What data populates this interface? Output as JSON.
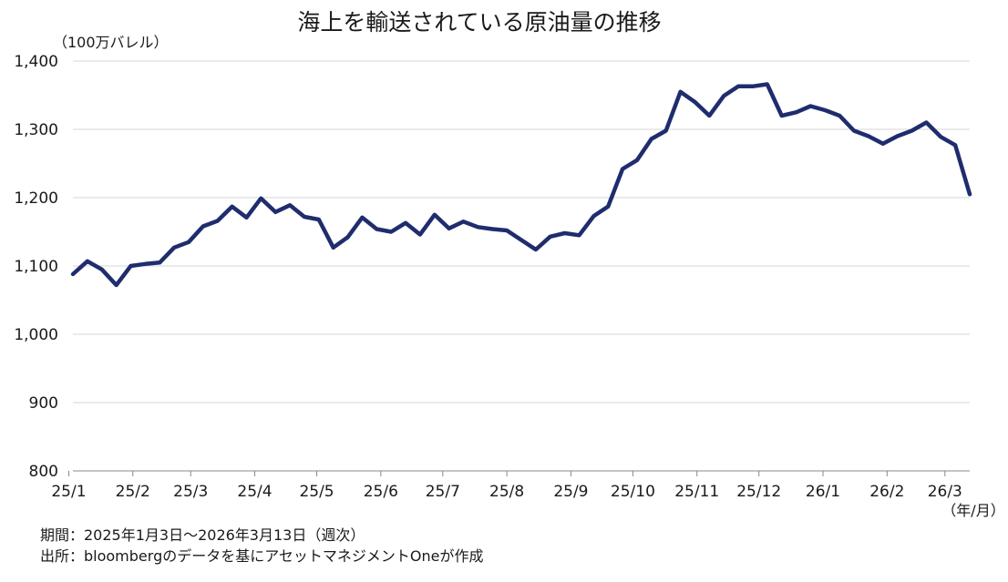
{
  "chart_data": {
    "type": "line",
    "title": "海上を輸送されている原油量の推移",
    "ylabel": "（100万バレル）",
    "xlabel": "（年/月）",
    "ylim": [
      800,
      1400
    ],
    "y_ticks": [
      "800",
      "900",
      "1,000",
      "1,100",
      "1,200",
      "1,300",
      "1,400"
    ],
    "y_tick_values": [
      800,
      900,
      1000,
      1100,
      1200,
      1300,
      1400
    ],
    "x_tick_labels": [
      "25/1",
      "25/2",
      "25/3",
      "25/4",
      "25/5",
      "25/6",
      "25/7",
      "25/8",
      "25/9",
      "25/10",
      "25/11",
      "25/12",
      "26/1",
      "26/2",
      "26/3"
    ],
    "x_tick_dates": [
      "2025-01-01",
      "2025-02-01",
      "2025-03-01",
      "2025-04-01",
      "2025-05-01",
      "2025-06-01",
      "2025-07-01",
      "2025-08-01",
      "2025-09-01",
      "2025-10-01",
      "2025-11-01",
      "2025-12-01",
      "2026-01-01",
      "2026-02-01",
      "2026-03-01"
    ],
    "grid": true,
    "line_color": "#1f2d6e",
    "series": [
      {
        "x": [
          "2025-01-03",
          "2025-01-10",
          "2025-01-17",
          "2025-01-24",
          "2025-01-31",
          "2025-02-07",
          "2025-02-14",
          "2025-02-21",
          "2025-02-28",
          "2025-03-07",
          "2025-03-14",
          "2025-03-21",
          "2025-03-28",
          "2025-04-04",
          "2025-04-11",
          "2025-04-18",
          "2025-04-25",
          "2025-05-02",
          "2025-05-09",
          "2025-05-16",
          "2025-05-23",
          "2025-05-30",
          "2025-06-06",
          "2025-06-13",
          "2025-06-20",
          "2025-06-27",
          "2025-07-04",
          "2025-07-11",
          "2025-07-18",
          "2025-07-25",
          "2025-08-01",
          "2025-08-08",
          "2025-08-15",
          "2025-08-22",
          "2025-08-29",
          "2025-09-05",
          "2025-09-12",
          "2025-09-19",
          "2025-09-26",
          "2025-10-03",
          "2025-10-10",
          "2025-10-17",
          "2025-10-24",
          "2025-10-31",
          "2025-11-07",
          "2025-11-14",
          "2025-11-21",
          "2025-11-28",
          "2025-12-05",
          "2025-12-12",
          "2025-12-19",
          "2025-12-26",
          "2026-01-02",
          "2026-01-09",
          "2026-01-16",
          "2026-01-23",
          "2026-01-30",
          "2026-02-06",
          "2026-02-13",
          "2026-02-20",
          "2026-02-27",
          "2026-03-06",
          "2026-03-13"
        ],
        "values": [
          1088,
          1107,
          1095,
          1072,
          1100,
          1103,
          1105,
          1127,
          1135,
          1158,
          1166,
          1187,
          1171,
          1199,
          1179,
          1189,
          1172,
          1168,
          1127,
          1142,
          1171,
          1154,
          1150,
          1163,
          1146,
          1175,
          1155,
          1165,
          1157,
          1154,
          1152,
          1138,
          1124,
          1143,
          1148,
          1145,
          1173,
          1187,
          1242,
          1255,
          1286,
          1298,
          1355,
          1340,
          1320,
          1349,
          1363,
          1363,
          1366,
          1320,
          1325,
          1334,
          1328,
          1320,
          1298,
          1290,
          1279,
          1290,
          1298,
          1310,
          1289,
          1277,
          1205
        ]
      }
    ]
  },
  "notes": {
    "period": "期間：2025年1月3日～2026年3月13日（週次）",
    "source": "出所：bloombergのデータを基にアセットマネジメントOneが作成"
  }
}
